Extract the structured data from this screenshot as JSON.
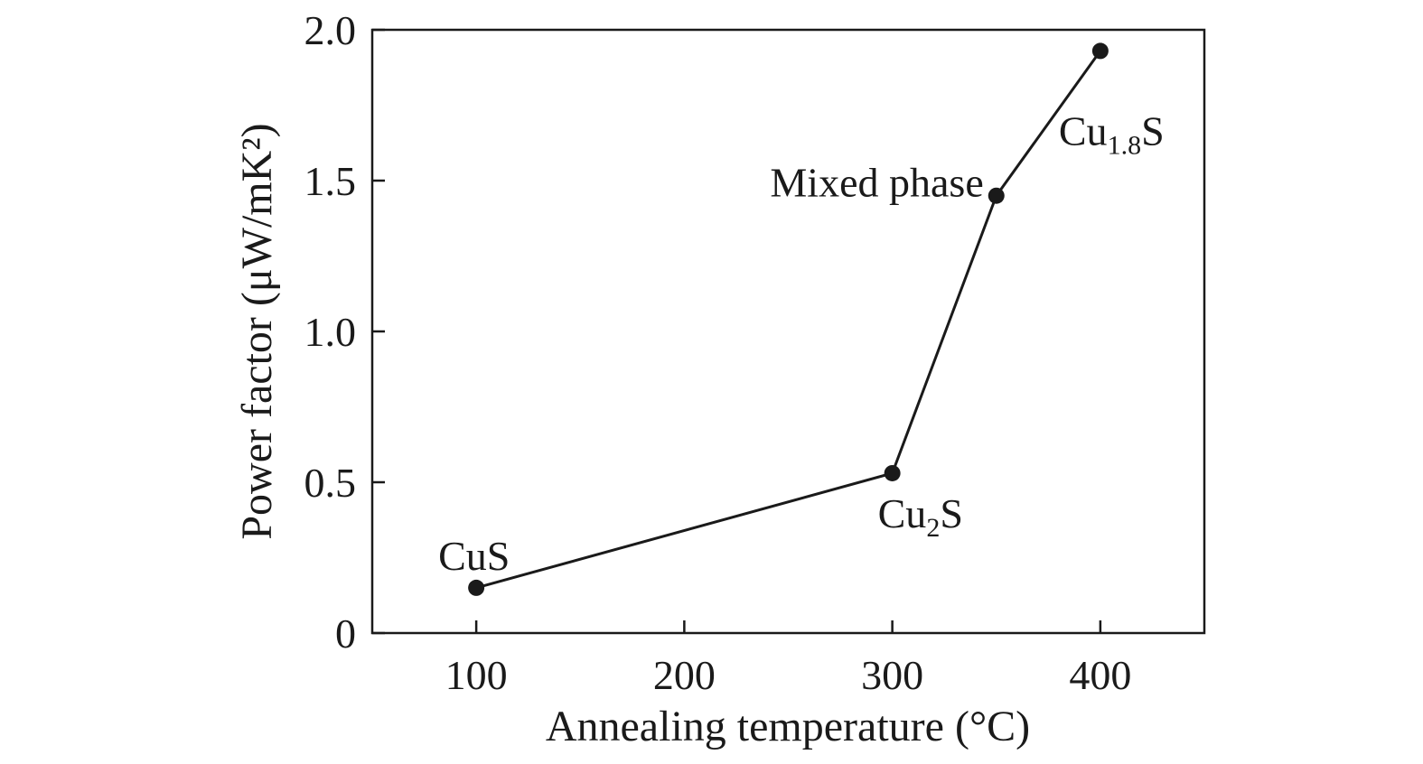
{
  "chart_data": {
    "type": "line",
    "xlabel": "Annealing temperature (°C)",
    "ylabel": "Power factor (μW/mK²)",
    "xlim": [
      50,
      450
    ],
    "ylim": [
      0,
      2.0
    ],
    "x_ticks": [
      100,
      200,
      300,
      400
    ],
    "y_ticks": [
      0,
      0.5,
      1.0,
      1.5,
      2.0
    ],
    "x_tick_labels": [
      "100",
      "200",
      "300",
      "400"
    ],
    "y_tick_labels": [
      "0",
      "0.5",
      "1.0",
      "1.5",
      "2.0"
    ],
    "grid": false,
    "series": [
      {
        "x": [
          100,
          300,
          350,
          400
        ],
        "y": [
          0.15,
          0.53,
          1.45,
          1.93
        ]
      }
    ],
    "annotations": [
      {
        "base": "CuS",
        "sub": "",
        "tail": "",
        "x": 100,
        "y": 0.15
      },
      {
        "base": "Cu",
        "sub": "2",
        "tail": "S",
        "x": 300,
        "y": 0.53
      },
      {
        "base": "Mixed phase",
        "sub": "",
        "tail": "",
        "x": 350,
        "y": 1.45
      },
      {
        "base": "Cu",
        "sub": "1.8",
        "tail": "S",
        "x": 400,
        "y": 1.93
      }
    ],
    "colors": {
      "line": "#1a1a1a",
      "marker": "#1a1a1a",
      "axis": "#1a1a1a"
    }
  }
}
